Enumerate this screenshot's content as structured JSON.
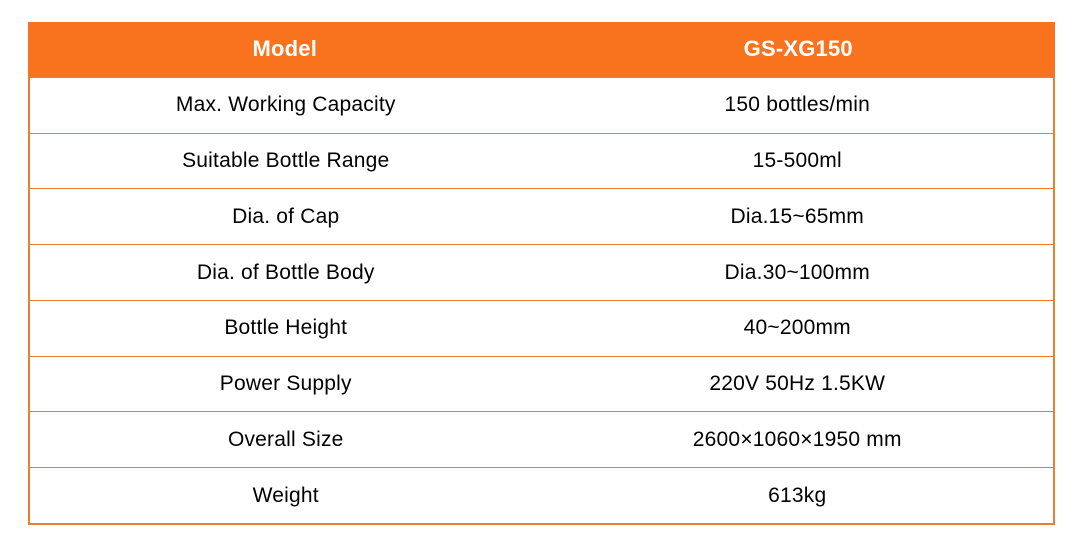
{
  "table": {
    "columns": [
      "Model",
      "GS-XG150"
    ],
    "rows": [
      {
        "label": "Max. Working Capacity",
        "value": "150 bottles/min"
      },
      {
        "label": "Suitable Bottle Range",
        "value": "15-500ml"
      },
      {
        "label": "Dia. of Cap",
        "value": "Dia.15~65mm"
      },
      {
        "label": "Dia. of Bottle Body",
        "value": "Dia.30~100mm"
      },
      {
        "label": "Bottle Height",
        "value": "40~200mm"
      },
      {
        "label": "Power Supply",
        "value": "220V 50Hz 1.5KW"
      },
      {
        "label": "Overall Size",
        "value": "2600×1060×1950 mm"
      },
      {
        "label": "Weight",
        "value": "613kg"
      }
    ],
    "colors": {
      "header_bg": "#F9731F",
      "header_text": "#FFFFFF",
      "border": "#ED7D31",
      "body_text": "#000000",
      "page_bg": "#FFFFFF"
    }
  },
  "chart_data": {
    "type": "table",
    "columns": [
      "Model",
      "GS-XG150"
    ],
    "rows": [
      [
        "Max. Working Capacity",
        "150 bottles/min"
      ],
      [
        "Suitable Bottle Range",
        "15-500ml"
      ],
      [
        "Dia. of Cap",
        "Dia.15~65mm"
      ],
      [
        "Dia. of Bottle Body",
        "Dia.30~100mm"
      ],
      [
        "Bottle Height",
        "40~200mm"
      ],
      [
        "Power Supply",
        "220V 50Hz 1.5KW"
      ],
      [
        "Overall Size",
        "2600×1060×1950 mm"
      ],
      [
        "Weight",
        "613kg"
      ]
    ],
    "layout_hints": {
      "header_fill": "#F9731F",
      "header_text_color": "#FFFFFF",
      "grid": "horizontal-only",
      "column_widths": [
        "50%",
        "50%"
      ],
      "text_align": "center"
    }
  }
}
